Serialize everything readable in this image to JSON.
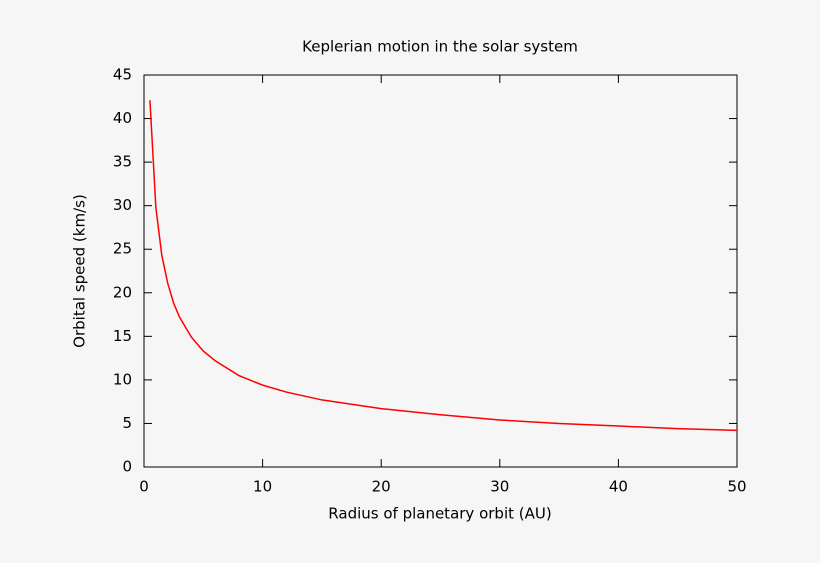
{
  "chart_data": {
    "type": "line",
    "title": "Keplerian motion in the solar system",
    "x_label": "Radius of planetary orbit (AU)",
    "y_label": "Orbital speed (km/s)",
    "x": [
      0.5,
      1,
      1.5,
      2,
      2.5,
      3,
      4,
      5,
      6,
      8,
      10,
      12,
      15,
      20,
      25,
      30,
      35,
      40,
      45,
      50
    ],
    "series": [
      {
        "color": "#ff0000",
        "values": [
          42.1,
          29.8,
          24.3,
          21.1,
          18.8,
          17.2,
          14.9,
          13.3,
          12.2,
          10.5,
          9.4,
          8.6,
          7.7,
          6.7,
          6.0,
          5.4,
          5.0,
          4.7,
          4.4,
          4.2
        ]
      }
    ],
    "xlim": [
      0,
      50
    ],
    "xticks": [
      0,
      10,
      20,
      30,
      40,
      50
    ],
    "ylim": [
      0,
      45
    ],
    "yticks": [
      0,
      5,
      10,
      15,
      20,
      25,
      30,
      35,
      40,
      45
    ]
  }
}
